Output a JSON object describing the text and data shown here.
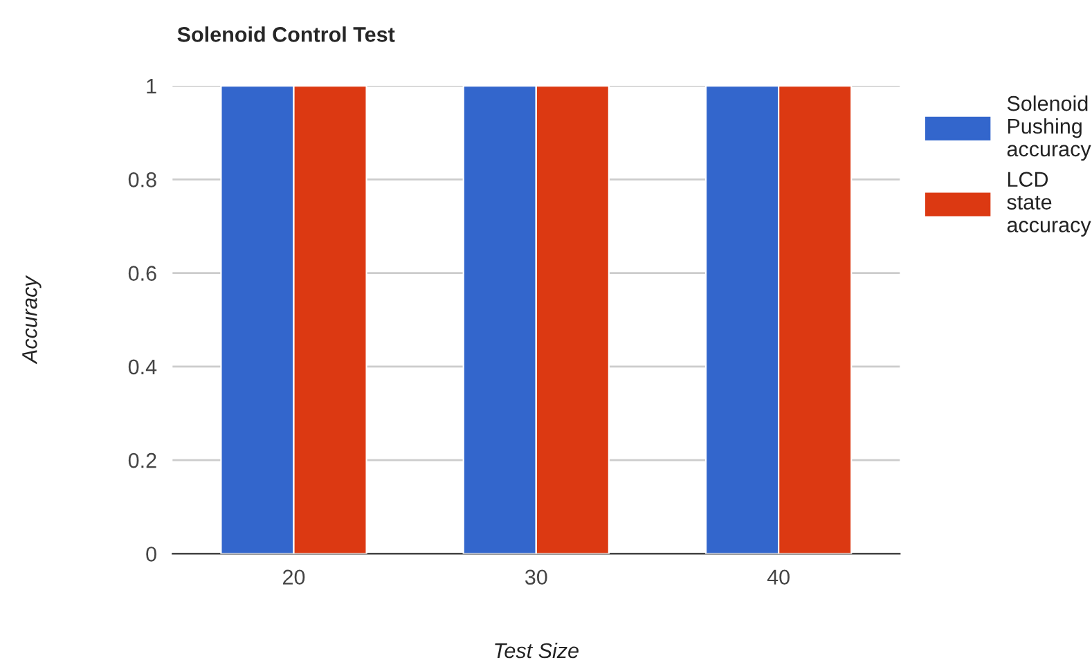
{
  "chart_data": {
    "type": "bar",
    "title": "Solenoid Control Test",
    "xlabel": "Test Size",
    "ylabel": "Accuracy",
    "categories": [
      "20",
      "30",
      "40"
    ],
    "series": [
      {
        "name": "Solenoid Pushing accuracy",
        "color": "#3366cc",
        "values": [
          1,
          1,
          1
        ]
      },
      {
        "name": "LCD state accuracy",
        "color": "#dc3912",
        "values": [
          1,
          1,
          1
        ]
      }
    ],
    "ylim": [
      0,
      1
    ],
    "yticks": [
      0,
      0.2,
      0.4,
      0.6,
      0.8,
      1
    ],
    "grid": "y",
    "legend": "right"
  }
}
